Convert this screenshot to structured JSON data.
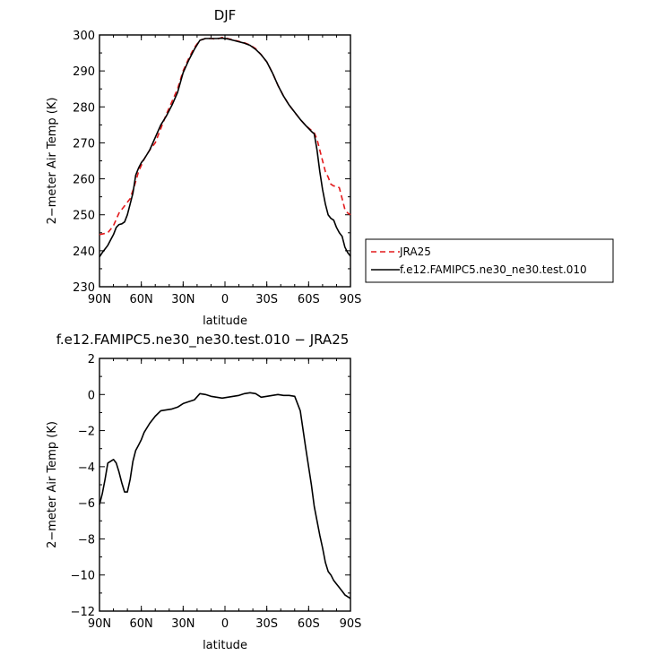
{
  "chart_data": [
    {
      "type": "line",
      "title": "DJF",
      "xlabel": "latitude",
      "ylabel": "2−meter Air Temp (K)",
      "xlim": [
        90,
        -90
      ],
      "ylim": [
        230,
        300
      ],
      "x_ticks": [
        90,
        60,
        30,
        0,
        -30,
        -60,
        -90
      ],
      "x_tick_labels": [
        "90N",
        "60N",
        "30N",
        "0",
        "30S",
        "60S",
        "90S"
      ],
      "y_ticks": [
        230,
        240,
        250,
        260,
        270,
        280,
        290,
        300
      ],
      "y_tick_labels": [
        "230",
        "240",
        "250",
        "260",
        "270",
        "280",
        "290",
        "300"
      ],
      "grid": false,
      "legend_position": "right-outside",
      "series": [
        {
          "name": "JRA25",
          "color": "#e31a1c",
          "dash": "dashed",
          "x": [
            90,
            84,
            80,
            76,
            72,
            68,
            65,
            62,
            58,
            54,
            50,
            46,
            42,
            38,
            34,
            30,
            26,
            22,
            18,
            14,
            10,
            6,
            2,
            -2,
            -6,
            -10,
            -14,
            -18,
            -22,
            -26,
            -30,
            -34,
            -38,
            -42,
            -46,
            -50,
            -54,
            -58,
            -62,
            -64,
            -66,
            -68,
            -70,
            -72,
            -74,
            -76,
            -78,
            -80,
            -82,
            -84,
            -86,
            -88,
            -90
          ],
          "y": [
            244.5,
            245,
            247,
            250.5,
            252.5,
            254.5,
            258,
            262,
            265.5,
            268,
            270,
            274,
            278,
            281.5,
            285,
            290,
            293.5,
            296.5,
            298.5,
            299,
            299,
            298.8,
            299.3,
            299,
            298.6,
            298.2,
            297.8,
            297.2,
            296.2,
            294.5,
            292.5,
            289.5,
            286,
            283,
            280.5,
            278.5,
            276.5,
            274.8,
            273.5,
            272.8,
            271,
            268,
            265,
            262,
            260.5,
            258.5,
            258,
            258,
            257.5,
            254.5,
            251.5,
            250.5,
            250
          ]
        },
        {
          "name": "f.e12.FAMIPC5.ne30_ne30.test.010",
          "color": "#000000",
          "dash": "solid",
          "x": [
            90,
            88,
            86,
            84,
            82,
            80,
            78,
            76,
            74,
            72,
            70,
            68,
            66,
            64,
            62,
            60,
            58,
            54,
            50,
            46,
            42,
            38,
            34,
            30,
            26,
            22,
            18,
            14,
            10,
            6,
            2,
            -2,
            -6,
            -10,
            -14,
            -18,
            -22,
            -26,
            -30,
            -34,
            -38,
            -42,
            -46,
            -50,
            -54,
            -58,
            -62,
            -64,
            -66,
            -68,
            -70,
            -72,
            -74,
            -76,
            -78,
            -80,
            -82,
            -84,
            -86,
            -88,
            -90
          ],
          "y": [
            238.3,
            239.5,
            240.5,
            241.5,
            243,
            244.5,
            246.5,
            247.3,
            247.5,
            248,
            250,
            253,
            256,
            261,
            263,
            264.5,
            265.5,
            268,
            271.5,
            275,
            277.5,
            280.5,
            284,
            289.5,
            293,
            296,
            298.5,
            299,
            299,
            299,
            299.1,
            298.9,
            298.5,
            298.1,
            297.7,
            297.1,
            296,
            294.5,
            292.5,
            289.5,
            286,
            283,
            280.5,
            278.5,
            276.5,
            274.8,
            273.2,
            272.5,
            268,
            262,
            257,
            253,
            250,
            249,
            248.5,
            246.5,
            245,
            244,
            241,
            239.5,
            238.5
          ]
        }
      ]
    },
    {
      "type": "line",
      "title": "f.e12.FAMIPC5.ne30_ne30.test.010 − JRA25",
      "xlabel": "latitude",
      "ylabel": "2−meter Air Temp (K)",
      "xlim": [
        90,
        -90
      ],
      "ylim": [
        -12,
        2
      ],
      "x_ticks": [
        90,
        60,
        30,
        0,
        -30,
        -60,
        -90
      ],
      "x_tick_labels": [
        "90N",
        "60N",
        "30N",
        "0",
        "30S",
        "60S",
        "90S"
      ],
      "y_ticks": [
        -12,
        -10,
        -8,
        -6,
        -4,
        -2,
        0,
        2
      ],
      "y_tick_labels": [
        "−12",
        "−10",
        "−8",
        "−6",
        "−4",
        "−2",
        "0",
        "2"
      ],
      "grid": false,
      "series": [
        {
          "color": "#000000",
          "dash": "solid",
          "x": [
            90,
            88,
            86,
            84,
            82,
            80,
            78,
            76,
            74,
            72,
            70,
            68,
            66,
            64,
            62,
            60,
            58,
            54,
            50,
            46,
            42,
            38,
            34,
            30,
            26,
            22,
            18,
            14,
            10,
            6,
            2,
            -2,
            -6,
            -10,
            -14,
            -18,
            -22,
            -26,
            -30,
            -34,
            -38,
            -42,
            -46,
            -50,
            -54,
            -58,
            -62,
            -64,
            -66,
            -68,
            -70,
            -72,
            -74,
            -76,
            -78,
            -80,
            -82,
            -84,
            -86,
            -88,
            -90
          ],
          "y": [
            -6.1,
            -5.5,
            -4.7,
            -3.8,
            -3.7,
            -3.6,
            -3.8,
            -4.3,
            -4.9,
            -5.4,
            -5.4,
            -4.7,
            -3.7,
            -3.1,
            -2.8,
            -2.5,
            -2.1,
            -1.6,
            -1.2,
            -0.9,
            -0.85,
            -0.8,
            -0.7,
            -0.5,
            -0.4,
            -0.3,
            0.05,
            0.0,
            -0.1,
            -0.15,
            -0.2,
            -0.15,
            -0.1,
            -0.05,
            0.05,
            0.1,
            0.05,
            -0.15,
            -0.1,
            -0.05,
            0.0,
            -0.05,
            -0.05,
            -0.1,
            -0.9,
            -3.0,
            -5.0,
            -6.2,
            -7.0,
            -7.8,
            -8.5,
            -9.3,
            -9.8,
            -10.0,
            -10.3,
            -10.5,
            -10.7,
            -10.9,
            -11.1,
            -11.2,
            -11.3
          ]
        }
      ]
    }
  ]
}
